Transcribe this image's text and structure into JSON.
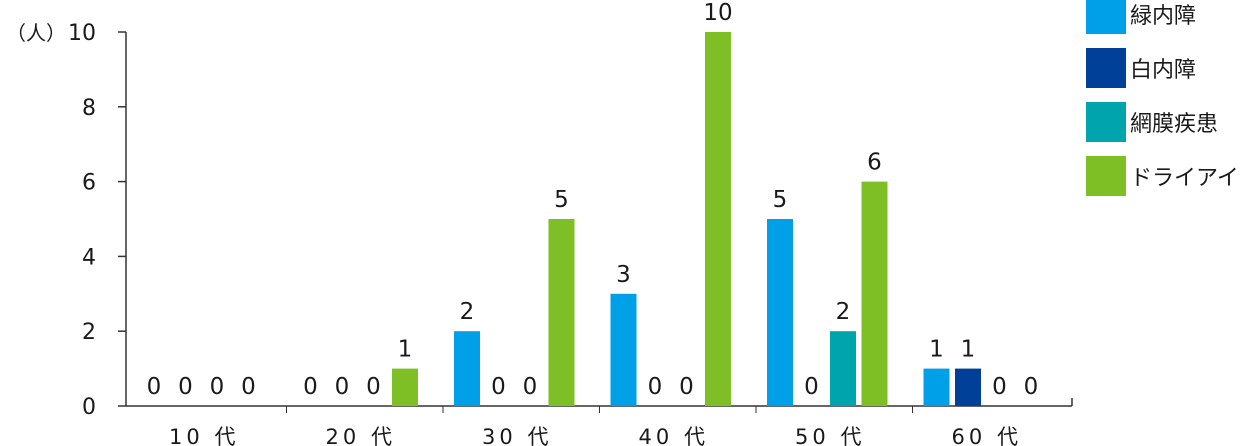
{
  "chart_data": {
    "type": "bar",
    "unit_label": "（人）",
    "categories": [
      "10 代",
      "20 代",
      "30 代",
      "40 代",
      "50 代",
      "60 代"
    ],
    "series": [
      {
        "name": "緑内障",
        "color": "#00a0e9",
        "values": [
          0,
          0,
          2,
          3,
          5,
          1
        ]
      },
      {
        "name": "白内障",
        "color": "#004098",
        "values": [
          0,
          0,
          0,
          0,
          0,
          1
        ]
      },
      {
        "name": "網膜疾患",
        "color": "#00a4ad",
        "values": [
          0,
          0,
          0,
          0,
          2,
          0
        ]
      },
      {
        "name": "ドライアイ",
        "color": "#7dbf25",
        "values": [
          0,
          1,
          5,
          10,
          6,
          0
        ]
      }
    ],
    "ylim": [
      0,
      10
    ],
    "yticks": [
      0,
      2,
      4,
      6,
      8,
      10
    ],
    "grid": false,
    "legend_position": "top-right",
    "axis_color": "#333333"
  }
}
